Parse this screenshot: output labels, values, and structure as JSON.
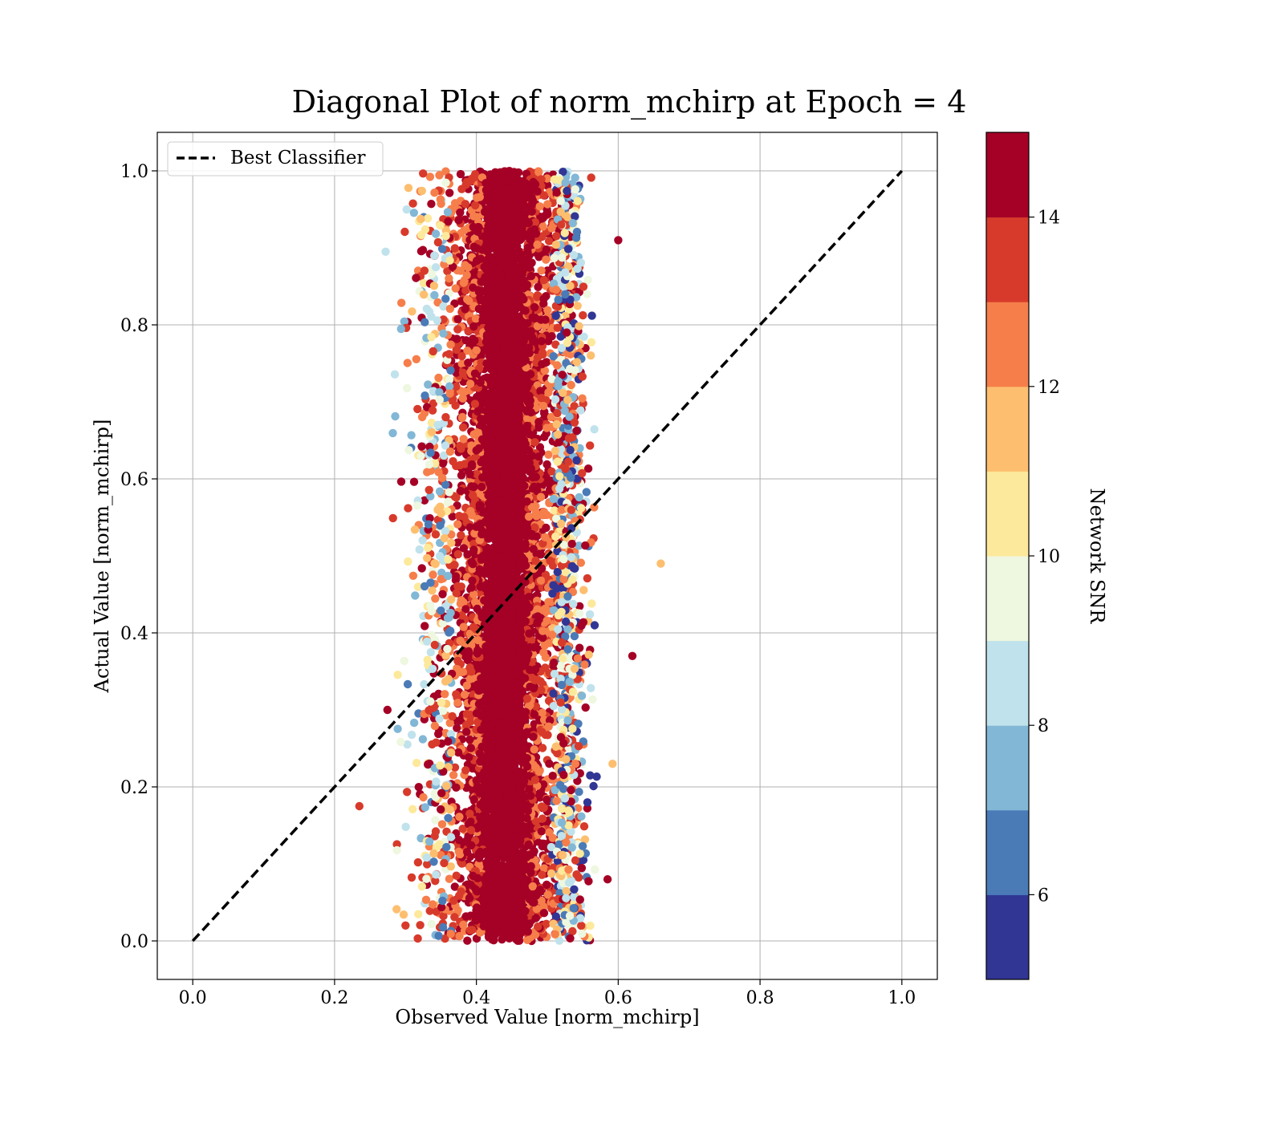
{
  "chart_data": {
    "type": "scatter",
    "title": "Diagonal Plot of norm_mchirp at Epoch = 4",
    "xlabel": "Observed Value [norm_mchirp]",
    "ylabel": "Actual Value [norm_mchirp]",
    "xlim": [
      -0.05,
      1.05
    ],
    "ylim": [
      -0.05,
      1.05
    ],
    "xticks": [
      "0.0",
      "0.2",
      "0.4",
      "0.6",
      "0.8",
      "1.0"
    ],
    "yticks": [
      "0.0",
      "0.2",
      "0.4",
      "0.6",
      "0.8",
      "1.0"
    ],
    "grid": true,
    "legend": {
      "placement": "upper-left",
      "entries": [
        "Best Classifier"
      ]
    },
    "reference_line": {
      "name": "Best Classifier",
      "x": [
        0.0,
        1.0
      ],
      "y": [
        0.0,
        1.0
      ],
      "style": "dashed",
      "color": "#000000"
    },
    "scatter_summary": {
      "x_center": 0.44,
      "x_core_halfwidth": 0.05,
      "x_outer_range": [
        0.27,
        0.6
      ],
      "y_range": [
        0.0,
        1.0
      ],
      "outliers": [
        {
          "x": 0.66,
          "y": 0.49,
          "snr": 11.5
        },
        {
          "x": 0.62,
          "y": 0.37,
          "snr": 14.6
        },
        {
          "x": 0.235,
          "y": 0.175,
          "snr": 13.6
        },
        {
          "x": 0.6,
          "y": 0.91,
          "snr": 14.6
        },
        {
          "x": 0.585,
          "y": 0.08,
          "snr": 14.6
        },
        {
          "x": 0.592,
          "y": 0.23,
          "snr": 11.6
        },
        {
          "x": 0.272,
          "y": 0.895,
          "snr": 8.0
        },
        {
          "x": 0.3,
          "y": 0.02,
          "snr": 13.6
        }
      ]
    },
    "colorbar": {
      "label": "Network SNR",
      "ticks": [
        "6",
        "8",
        "10",
        "12",
        "14"
      ],
      "tick_values": [
        6,
        8,
        10,
        12,
        14
      ],
      "range": [
        5,
        15
      ],
      "bins": 10,
      "colors": [
        "#313695",
        "#4a7bb7",
        "#82b7d6",
        "#c0e2ec",
        "#eef7df",
        "#fde99b",
        "#fdbf6f",
        "#f67e4b",
        "#d73a2b",
        "#a50026"
      ]
    }
  }
}
